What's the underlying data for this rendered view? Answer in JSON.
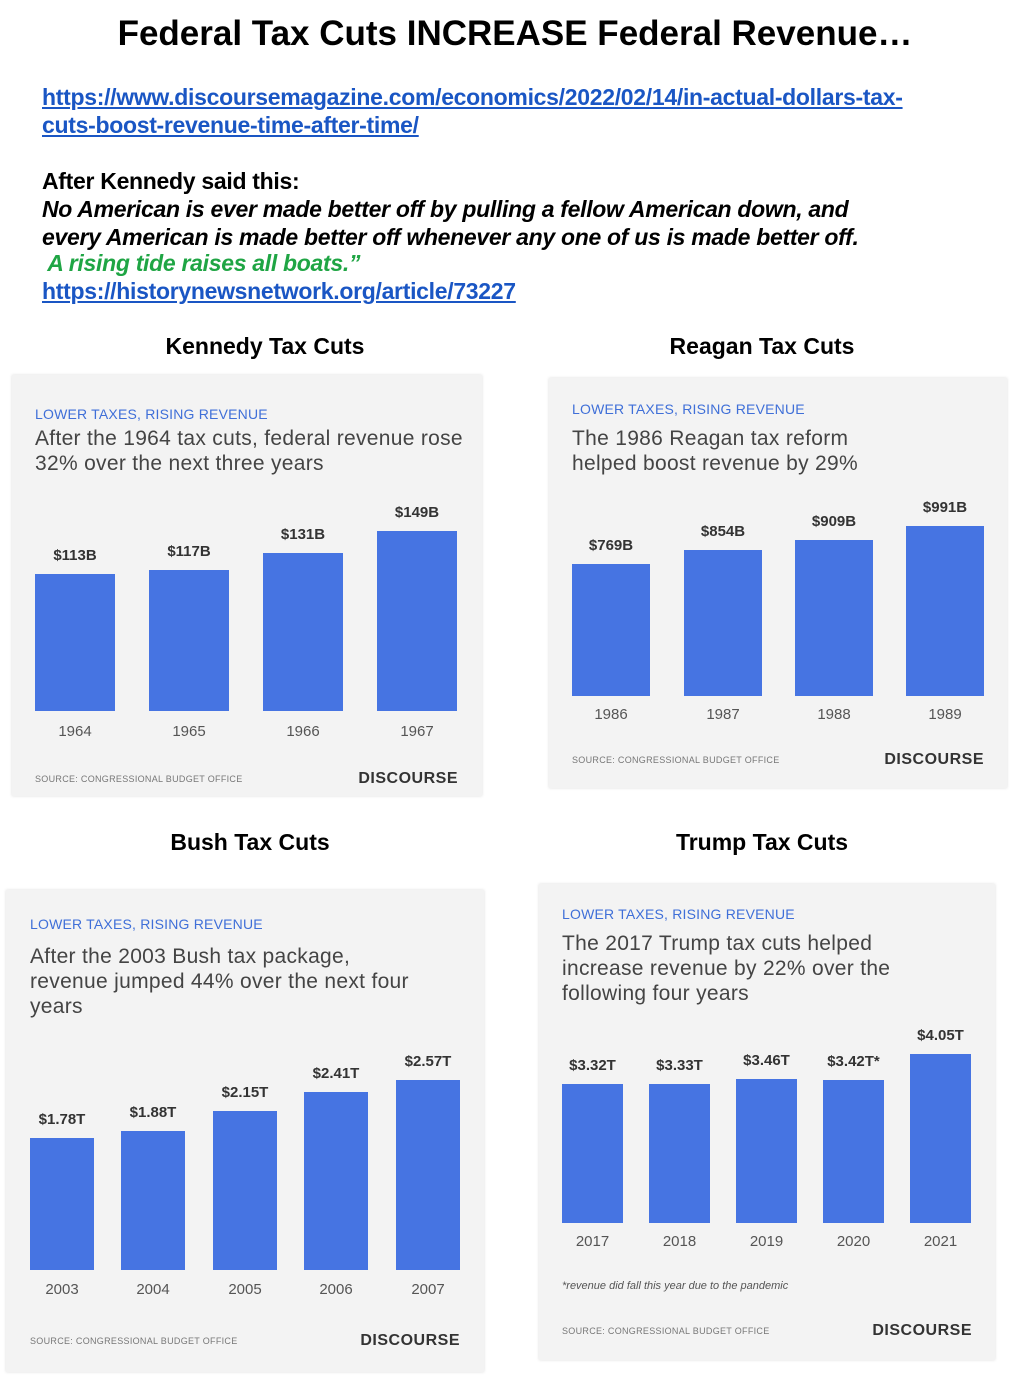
{
  "header": {
    "title": "Federal Tax Cuts INCREASE Federal Revenue…",
    "link1_line1": "https://www.discoursemagazine.com/economics/2022/02/14/in-actual-dollars-tax-",
    "link1_line2": "cuts-boost-revenue-time-after-time/",
    "intro": "After Kennedy said this:",
    "quote_line1": "No American is ever made better off by pulling a fellow American down, and",
    "quote_line2": "every American is made better off whenever any one of us is made better off.",
    "quote_green": " A rising tide raises all boats.”",
    "link2": "https://historynewsnetwork.org/article/73227"
  },
  "chart_data": [
    {
      "type": "bar",
      "heading": "Kennedy Tax Cuts",
      "subtitle": "LOWER TAXES, RISING REVENUE",
      "title": "After the 1964 tax cuts, federal revenue rose 32% over the next three years",
      "categories": [
        "1964",
        "1965",
        "1966",
        "1967"
      ],
      "values": [
        113,
        117,
        131,
        149
      ],
      "labels": [
        "$113B",
        "$117B",
        "$131B",
        "$149B"
      ],
      "unit": "billion USD",
      "source": "SOURCE: CONGRESSIONAL BUDGET OFFICE",
      "brand": "DISCOURSE"
    },
    {
      "type": "bar",
      "heading": "Reagan Tax Cuts",
      "subtitle": "LOWER TAXES, RISING REVENUE",
      "title": "The 1986 Reagan tax reform helped boost revenue by 29%",
      "categories": [
        "1986",
        "1987",
        "1988",
        "1989"
      ],
      "values": [
        769,
        854,
        909,
        991
      ],
      "labels": [
        "$769B",
        "$854B",
        "$909B",
        "$991B"
      ],
      "unit": "billion USD",
      "source": "SOURCE: CONGRESSIONAL BUDGET OFFICE",
      "brand": "DISCOURSE"
    },
    {
      "type": "bar",
      "heading": "Bush Tax Cuts",
      "subtitle": "LOWER TAXES, RISING REVENUE",
      "title": "After the 2003 Bush tax package, revenue jumped 44% over the next four years",
      "categories": [
        "2003",
        "2004",
        "2005",
        "2006",
        "2007"
      ],
      "values": [
        1.78,
        1.88,
        2.15,
        2.41,
        2.57
      ],
      "labels": [
        "$1.78T",
        "$1.88T",
        "$2.15T",
        "$2.41T",
        "$2.57T"
      ],
      "unit": "trillion USD",
      "source": "SOURCE: CONGRESSIONAL BUDGET OFFICE",
      "brand": "DISCOURSE"
    },
    {
      "type": "bar",
      "heading": "Trump Tax Cuts",
      "subtitle": "LOWER TAXES, RISING REVENUE",
      "title": "The 2017 Trump tax cuts helped increase revenue by 22% over the following four years",
      "categories": [
        "2017",
        "2018",
        "2019",
        "2020",
        "2021"
      ],
      "values": [
        3.32,
        3.33,
        3.46,
        3.42,
        4.05
      ],
      "labels": [
        "$3.32T",
        "$3.33T",
        "$3.46T",
        "$3.42T*",
        "$4.05T"
      ],
      "unit": "trillion USD",
      "note": "*revenue did fall this year due to the pandemic",
      "source": "SOURCE: CONGRESSIONAL BUDGET OFFICE",
      "brand": "DISCOURSE"
    }
  ]
}
